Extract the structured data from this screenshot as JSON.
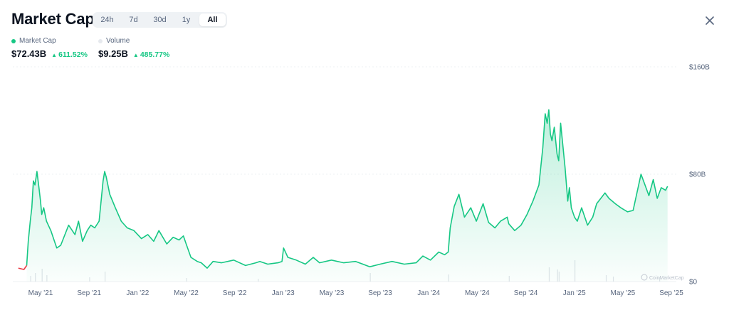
{
  "header": {
    "title": "Market Cap",
    "tabs": [
      "24h",
      "7d",
      "30d",
      "1y",
      "All"
    ],
    "active_tab": "All"
  },
  "legend": {
    "market_cap_label": "Market Cap",
    "volume_label": "Volume",
    "market_cap_value": "$72.43B",
    "market_cap_change": "611.52%",
    "volume_value": "$9.25B",
    "volume_change": "485.77%"
  },
  "colors": {
    "line": "#16c784",
    "down": "#ea3943",
    "volume_dot": "#e6e9ee",
    "grid": "#eef0f3",
    "axis_text": "#58667e"
  },
  "watermark": "CoinMarketCap",
  "chart_data": {
    "type": "area",
    "title": "Market Cap",
    "xlabel": "",
    "ylabel": "",
    "ylim": [
      0,
      160
    ],
    "y_unit": "B",
    "y_ticks": [
      "$0",
      "$80B",
      "$160B"
    ],
    "y_tick_values": [
      0,
      80,
      160
    ],
    "x_ticks": [
      "May '21",
      "Sep '21",
      "Jan '22",
      "May '22",
      "Sep '22",
      "Jan '23",
      "May '23",
      "Sep '23",
      "Jan '24",
      "May '24",
      "Sep '24",
      "Jan '25",
      "May '25",
      "Sep '25"
    ],
    "grid": true,
    "series": [
      {
        "name": "Market Cap",
        "x": [
          "2021-03-15",
          "2021-03-29",
          "2021-04-05",
          "2021-04-09",
          "2021-04-14",
          "2021-04-18",
          "2021-04-22",
          "2021-04-26",
          "2021-05-01",
          "2021-05-06",
          "2021-05-10",
          "2021-05-13",
          "2021-05-18",
          "2021-05-25",
          "2021-06-05",
          "2021-06-20",
          "2021-06-30",
          "2021-07-20",
          "2021-08-05",
          "2021-08-14",
          "2021-08-24",
          "2021-09-05",
          "2021-09-14",
          "2021-09-24",
          "2021-10-05",
          "2021-10-10",
          "2021-10-15",
          "2021-10-19",
          "2021-10-23",
          "2021-11-01",
          "2021-11-15",
          "2021-11-30",
          "2021-12-15",
          "2022-01-01",
          "2022-01-20",
          "2022-02-05",
          "2022-02-20",
          "2022-03-05",
          "2022-03-25",
          "2022-04-10",
          "2022-04-25",
          "2022-05-06",
          "2022-05-13",
          "2022-05-25",
          "2022-06-10",
          "2022-06-20",
          "2022-07-05",
          "2022-07-20",
          "2022-08-10",
          "2022-09-10",
          "2022-10-10",
          "2022-11-05",
          "2022-11-15",
          "2022-12-05",
          "2022-12-31",
          "2023-01-10",
          "2023-01-14",
          "2023-01-25",
          "2023-02-15",
          "2023-03-10",
          "2023-03-30",
          "2023-04-15",
          "2023-05-15",
          "2023-06-15",
          "2023-07-15",
          "2023-08-20",
          "2023-09-15",
          "2023-10-15",
          "2023-11-15",
          "2023-12-15",
          "2024-01-01",
          "2024-01-20",
          "2024-02-10",
          "2024-02-25",
          "2024-03-05",
          "2024-03-10",
          "2024-03-20",
          "2024-04-01",
          "2024-04-15",
          "2024-05-01",
          "2024-05-15",
          "2024-06-01",
          "2024-06-15",
          "2024-07-01",
          "2024-07-15",
          "2024-08-01",
          "2024-08-05",
          "2024-08-20",
          "2024-09-05",
          "2024-09-20",
          "2024-10-05",
          "2024-10-20",
          "2024-10-30",
          "2024-11-05",
          "2024-11-10",
          "2024-11-14",
          "2024-11-18",
          "2024-11-22",
          "2024-11-28",
          "2024-12-05",
          "2024-12-09",
          "2024-12-14",
          "2024-12-20",
          "2024-12-25",
          "2025-01-01",
          "2025-01-05",
          "2025-01-10",
          "2025-01-18",
          "2025-01-25",
          "2025-02-05",
          "2025-02-20",
          "2025-03-05",
          "2025-03-15",
          "2025-04-05",
          "2025-04-15",
          "2025-05-01",
          "2025-05-15",
          "2025-06-01",
          "2025-06-15",
          "2025-07-05",
          "2025-07-15",
          "2025-07-25",
          "2025-08-05",
          "2025-08-15",
          "2025-08-25",
          "2025-09-05",
          "2025-09-10"
        ],
        "values": [
          10,
          9,
          12,
          30,
          45,
          55,
          75,
          72,
          82,
          70,
          60,
          50,
          55,
          45,
          38,
          25,
          27,
          42,
          35,
          45,
          30,
          38,
          42,
          40,
          45,
          60,
          75,
          82,
          78,
          65,
          55,
          45,
          40,
          38,
          32,
          35,
          30,
          38,
          28,
          33,
          31,
          34,
          28,
          18,
          15,
          14,
          10,
          15,
          14,
          16,
          12,
          14,
          15,
          13,
          14,
          15,
          25,
          18,
          16,
          13,
          18,
          14,
          16,
          14,
          15,
          11,
          13,
          15,
          13,
          14,
          19,
          16,
          22,
          20,
          22,
          40,
          56,
          65,
          48,
          55,
          45,
          58,
          44,
          40,
          45,
          48,
          43,
          38,
          42,
          50,
          60,
          72,
          100,
          125,
          118,
          128,
          110,
          105,
          115,
          95,
          90,
          118,
          100,
          85,
          60,
          70,
          55,
          48,
          45,
          55,
          42,
          48,
          58,
          66,
          62,
          58,
          55,
          52,
          53,
          80,
          72,
          64,
          76,
          62,
          70,
          68,
          71
        ],
        "down_segment_count": 2
      },
      {
        "name": "Volume",
        "x": [
          "2021-04-14",
          "2021-04-26",
          "2021-05-13",
          "2021-05-25",
          "2021-09-10",
          "2021-10-19",
          "2022-05-13",
          "2022-11-10",
          "2023-08-20",
          "2024-03-05",
          "2024-08-05",
          "2024-11-14",
          "2024-12-05",
          "2024-12-09",
          "2025-01-18",
          "2025-04-07",
          "2025-04-25",
          "2025-08-20"
        ],
        "values": [
          8,
          12,
          18,
          9,
          6,
          14,
          5,
          4,
          12,
          10,
          8,
          20,
          17,
          14,
          30,
          9,
          7,
          6
        ]
      }
    ]
  }
}
